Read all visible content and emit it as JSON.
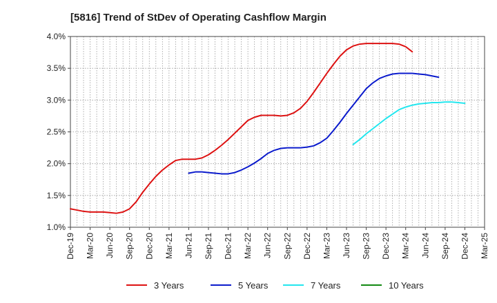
{
  "chart_data": {
    "type": "line",
    "title": "[5816]  Trend of StDev of Operating Cashflow Margin",
    "xlabel": "",
    "ylabel": "",
    "x_ticks": [
      "Dec-19",
      "Mar-20",
      "Jun-20",
      "Sep-20",
      "Dec-20",
      "Mar-21",
      "Jun-21",
      "Sep-21",
      "Dec-21",
      "Mar-22",
      "Jun-22",
      "Sep-22",
      "Dec-22",
      "Mar-23",
      "Jun-23",
      "Sep-23",
      "Dec-23",
      "Mar-24",
      "Jun-24",
      "Sep-24",
      "Dec-24",
      "Mar-25"
    ],
    "y_ticks": [
      "1.0%",
      "1.5%",
      "2.0%",
      "2.5%",
      "3.0%",
      "3.5%",
      "4.0%"
    ],
    "ylim": [
      1.0,
      4.0
    ],
    "y_unit": "%",
    "grid": true,
    "legend_position": "bottom",
    "series": [
      {
        "name": "3 Years",
        "color": "#dd1111",
        "start_index": 0,
        "values": [
          1.29,
          1.27,
          1.25,
          1.24,
          1.24,
          1.24,
          1.23,
          1.22,
          1.24,
          1.29,
          1.4,
          1.55,
          1.68,
          1.8,
          1.9,
          1.98,
          2.05,
          2.07,
          2.07,
          2.07,
          2.09,
          2.14,
          2.21,
          2.29,
          2.38,
          2.48,
          2.58,
          2.68,
          2.73,
          2.76,
          2.76,
          2.76,
          2.75,
          2.76,
          2.8,
          2.87,
          2.98,
          3.12,
          3.27,
          3.42,
          3.56,
          3.69,
          3.79,
          3.85,
          3.88,
          3.89,
          3.89,
          3.89,
          3.89,
          3.89,
          3.88,
          3.84,
          3.76
        ]
      },
      {
        "name": "5 Years",
        "color": "#0a1acc",
        "start_index": 18,
        "values": [
          1.85,
          1.87,
          1.87,
          1.86,
          1.85,
          1.84,
          1.84,
          1.86,
          1.9,
          1.95,
          2.01,
          2.08,
          2.16,
          2.21,
          2.24,
          2.25,
          2.25,
          2.25,
          2.26,
          2.28,
          2.33,
          2.4,
          2.52,
          2.65,
          2.79,
          2.92,
          3.05,
          3.18,
          3.27,
          3.34,
          3.38,
          3.41,
          3.42,
          3.42,
          3.42,
          3.41,
          3.4,
          3.38,
          3.36
        ]
      },
      {
        "name": "7 Years",
        "color": "#22e6ee",
        "start_index": 43,
        "values": [
          2.3,
          2.38,
          2.47,
          2.55,
          2.63,
          2.71,
          2.78,
          2.85,
          2.89,
          2.92,
          2.94,
          2.95,
          2.96,
          2.96,
          2.97,
          2.97,
          2.96,
          2.95
        ]
      },
      {
        "name": "10 Years",
        "color": "#118811",
        "start_index": 0,
        "values": []
      }
    ]
  }
}
